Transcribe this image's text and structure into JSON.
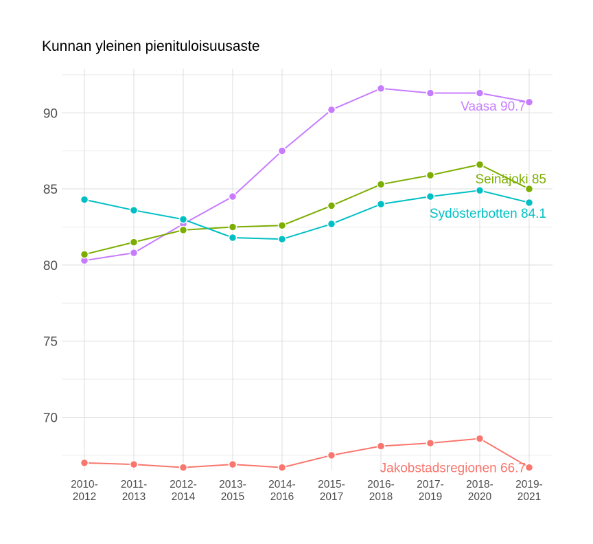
{
  "chart_data": {
    "type": "line",
    "title": "Kunnan yleinen pienituloisuusaste",
    "xlabel": "",
    "ylabel": "",
    "categories": [
      "2010-\n2012",
      "2011-\n2013",
      "2012-\n2014",
      "2013-\n2015",
      "2014-\n2016",
      "2015-\n2017",
      "2016-\n2018",
      "2017-\n2019",
      "2018-\n2020",
      "2019-\n2021"
    ],
    "ylim": [
      66.5,
      92.9
    ],
    "yticks": [
      70,
      75,
      80,
      85,
      90
    ],
    "grid": true,
    "legend": "none (direct labels at line ends)",
    "series": [
      {
        "name": "Vaasa",
        "end_label": "Vaasa 90.7",
        "color": "#C77CFF",
        "values": [
          80.3,
          80.8,
          82.7,
          84.5,
          87.5,
          90.2,
          91.6,
          91.3,
          91.3,
          90.7
        ]
      },
      {
        "name": "Seinäjoki",
        "end_label": "Seinäjoki 85",
        "color": "#7CAE00",
        "values": [
          80.7,
          81.5,
          82.3,
          82.5,
          82.6,
          83.9,
          85.3,
          85.9,
          86.6,
          85.0
        ]
      },
      {
        "name": "Sydösterbotten",
        "end_label": "Sydösterbotten 84.1",
        "color": "#00BFC4",
        "values": [
          84.3,
          83.6,
          83.0,
          81.8,
          81.7,
          82.7,
          84.0,
          84.5,
          84.9,
          84.1
        ]
      },
      {
        "name": "Jakobstadsregionen",
        "end_label": "Jakobstadsregionen 66.7",
        "color": "#F8766D",
        "values": [
          67.0,
          66.9,
          66.7,
          66.9,
          66.7,
          67.5,
          68.1,
          68.3,
          68.6,
          66.7
        ]
      }
    ]
  }
}
